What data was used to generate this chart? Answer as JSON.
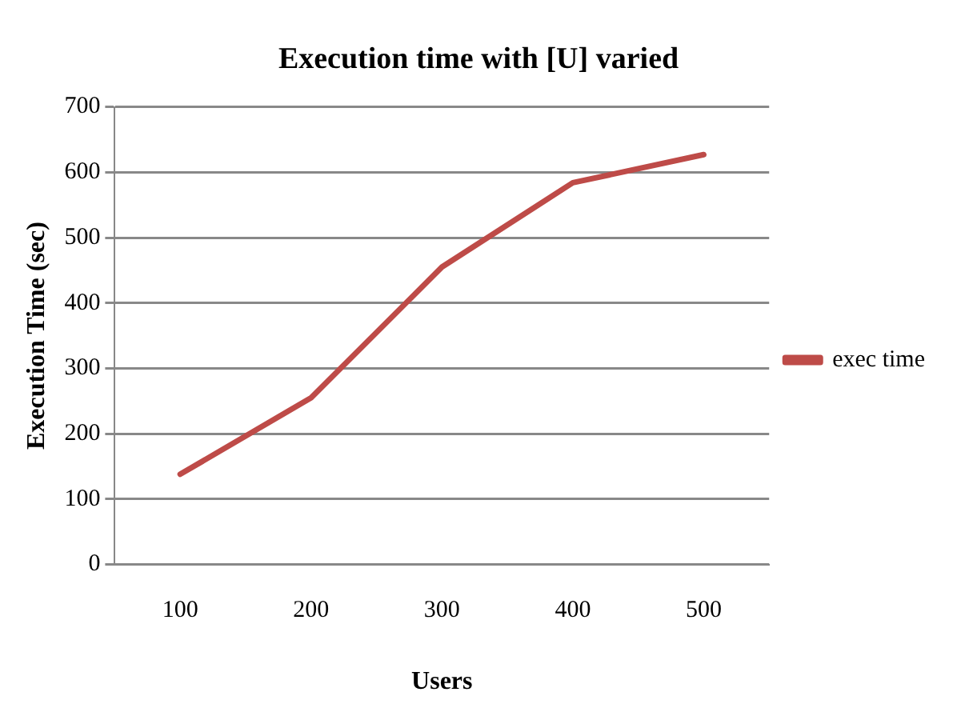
{
  "chart_data": {
    "type": "line",
    "title": "Execution time with [U] varied",
    "xlabel": "Users",
    "ylabel": "Execution Time (sec)",
    "categories": [
      "100",
      "200",
      "300",
      "400",
      "500"
    ],
    "series": [
      {
        "name": "exec time",
        "color": "#be4b48",
        "values": [
          138,
          255,
          455,
          584,
          627
        ]
      }
    ],
    "ylim": [
      0,
      700
    ],
    "yticks": [
      0,
      100,
      200,
      300,
      400,
      500,
      600,
      700
    ],
    "grid": "y",
    "legend": "right",
    "marker": "none"
  }
}
